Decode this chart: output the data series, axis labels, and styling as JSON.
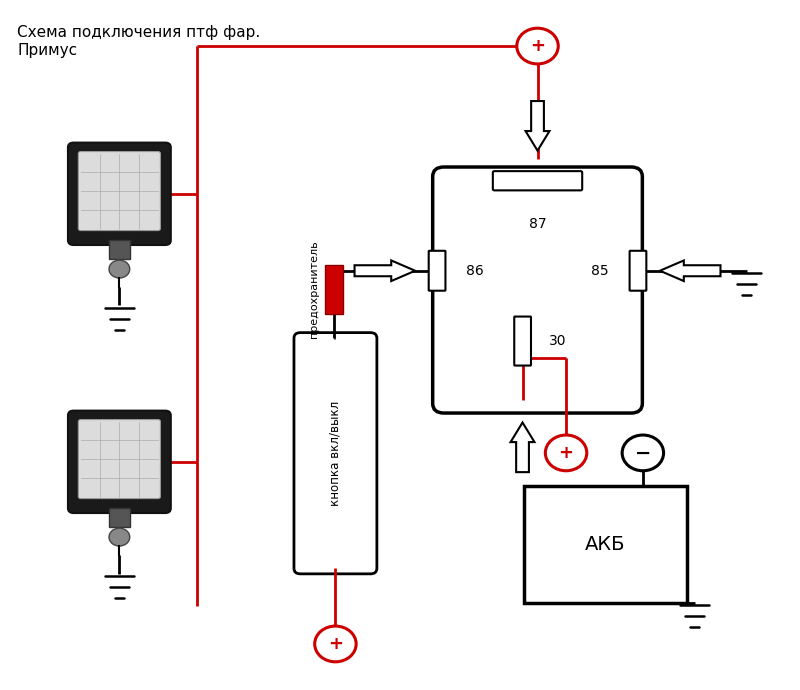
{
  "title": "Схема подключения птф фар.\nПримус",
  "title_fontsize": 11,
  "bg_color": "#ffffff",
  "wire_color_red": "#cc0000",
  "wire_color_black": "#000000",
  "relay_label_87": "87",
  "relay_label_86": "86",
  "relay_label_85": "85",
  "relay_label_30": "30",
  "battery_label": "АКБ",
  "button_label": "кнопка вкл/выкл",
  "fuse_label": "предохранитель"
}
